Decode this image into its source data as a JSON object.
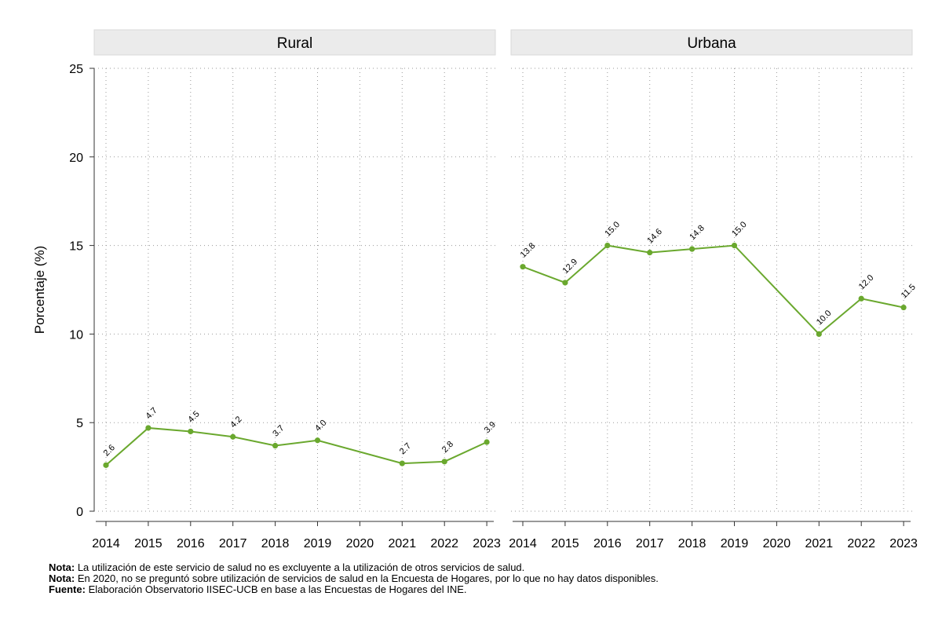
{
  "chart_data": {
    "type": "line",
    "ylabel": "Porcentaje (%)",
    "ylim": [
      0,
      25
    ],
    "yticks": [
      0,
      5,
      10,
      15,
      20,
      25
    ],
    "categories": [
      "2014",
      "2015",
      "2016",
      "2017",
      "2018",
      "2019",
      "2020",
      "2021",
      "2022",
      "2023"
    ],
    "grid": true,
    "line_color": "#6aa82e",
    "panels": [
      {
        "title": "Rural",
        "series": [
          {
            "values": [
              2.6,
              4.7,
              4.5,
              4.2,
              3.7,
              4.0,
              null,
              2.7,
              2.8,
              3.9
            ],
            "labels": [
              "2.6",
              "4.7",
              "4.5",
              "4.2",
              "3.7",
              "4.0",
              "",
              "2.7",
              "2.8",
              "3.9"
            ]
          }
        ]
      },
      {
        "title": "Urbana",
        "series": [
          {
            "values": [
              13.8,
              12.9,
              15.0,
              14.6,
              14.8,
              15.0,
              null,
              10.0,
              12.0,
              11.5
            ],
            "labels": [
              "13.8",
              "12.9",
              "15.0",
              "14.6",
              "14.8",
              "15.0",
              "",
              "10.0",
              "12.0",
              "11.5"
            ]
          }
        ]
      }
    ]
  },
  "notes": [
    {
      "label": "Nota:",
      "text": " La utilización de este servicio de salud no es excluyente a la utilización de otros servicios de salud."
    },
    {
      "label": "Nota:",
      "text": " En 2020, no se preguntó sobre utilización de servicios de salud en la Encuesta de Hogares, por lo que no hay datos disponibles."
    },
    {
      "label": "Fuente:",
      "text": " Elaboración Observatorio IISEC-UCB en base a las Encuestas de Hogares del INE."
    }
  ]
}
